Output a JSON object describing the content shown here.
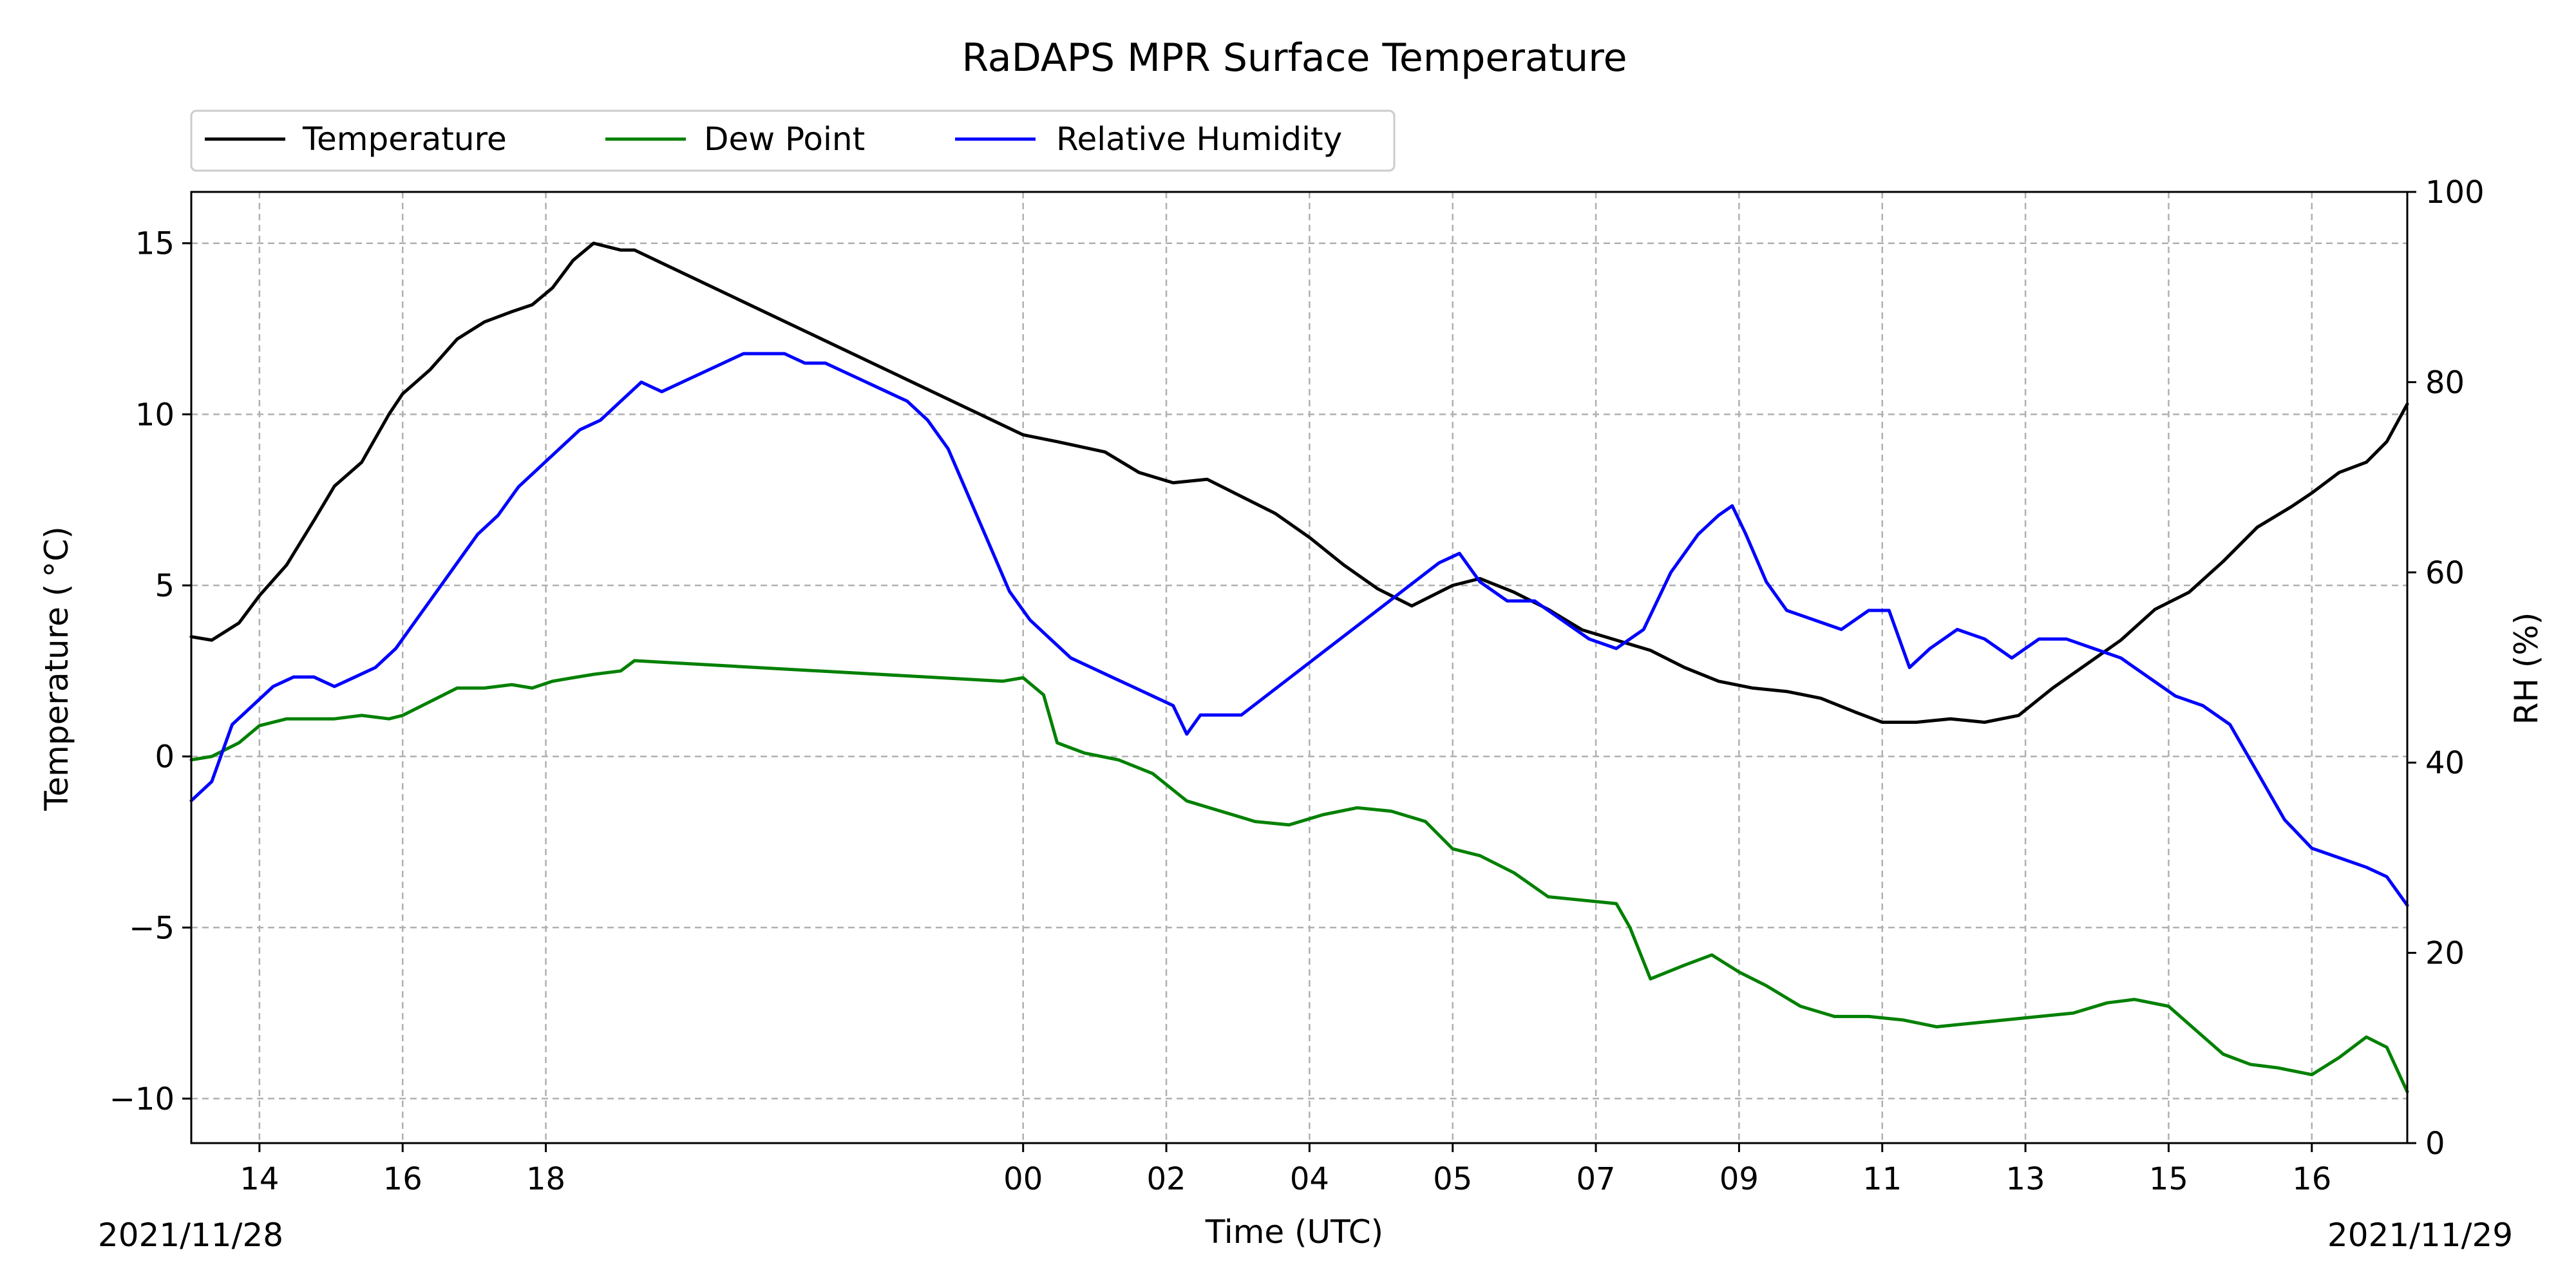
{
  "chart_data": {
    "type": "line",
    "title": "RaDAPS MPR Surface Temperature",
    "xlabel": "Time (UTC)",
    "ylabel": "Temperature ($^\\circ$C)",
    "ylabel_right": "RH (%)",
    "date_left": "2021/11/28",
    "date_right": "2021/11/29",
    "xlim": [
      12.9,
      45.4
    ],
    "ylim": [
      -11.3,
      16.5
    ],
    "ylim_right": [
      0,
      100
    ],
    "grid": true,
    "legend_position": "top-left, above plot",
    "x_ticks": [
      {
        "x": 13.9,
        "label": "14"
      },
      {
        "x": 16.0,
        "label": "16"
      },
      {
        "x": 18.1,
        "label": "18"
      },
      {
        "x": 25.1,
        "label": "00"
      },
      {
        "x": 27.2,
        "label": "02"
      },
      {
        "x": 29.3,
        "label": "04"
      },
      {
        "x": 31.4,
        "label": "05"
      },
      {
        "x": 33.5,
        "label": "07"
      },
      {
        "x": 35.6,
        "label": "09"
      },
      {
        "x": 37.7,
        "label": "11"
      },
      {
        "x": 39.8,
        "label": "13"
      },
      {
        "x": 41.9,
        "label": "15"
      },
      {
        "x": 44.0,
        "label": "16"
      }
    ],
    "y_ticks": [
      {
        "v": -10,
        "label": "−10"
      },
      {
        "v": -5,
        "label": "−5"
      },
      {
        "v": 0,
        "label": "0"
      },
      {
        "v": 5,
        "label": "5"
      },
      {
        "v": 10,
        "label": "10"
      },
      {
        "v": 15,
        "label": "15"
      }
    ],
    "y_ticks_right": [
      {
        "v": 0,
        "label": "0"
      },
      {
        "v": 20,
        "label": "20"
      },
      {
        "v": 40,
        "label": "40"
      },
      {
        "v": 60,
        "label": "60"
      },
      {
        "v": 80,
        "label": "80"
      },
      {
        "v": 100,
        "label": "100"
      }
    ],
    "series": [
      {
        "name": "Temperature",
        "color": "#000000",
        "axis": "left",
        "x": [
          12.9,
          13.2,
          13.6,
          13.9,
          14.3,
          14.7,
          15.0,
          15.4,
          15.8,
          16.0,
          16.4,
          16.8,
          17.2,
          17.6,
          17.9,
          18.2,
          18.5,
          18.8,
          19.2,
          19.4,
          25.1,
          25.6,
          26.3,
          26.8,
          27.3,
          27.8,
          28.3,
          28.8,
          29.3,
          29.8,
          30.3,
          30.8,
          31.4,
          31.8,
          32.3,
          32.8,
          33.3,
          33.8,
          34.3,
          34.8,
          35.3,
          35.8,
          36.3,
          36.8,
          37.3,
          37.7,
          38.2,
          38.7,
          39.2,
          39.7,
          40.2,
          40.7,
          41.2,
          41.7,
          42.2,
          42.7,
          43.2,
          43.7,
          44.0,
          44.4,
          44.8,
          45.1,
          45.4
        ],
        "y": [
          3.5,
          3.4,
          3.9,
          4.7,
          5.6,
          6.9,
          7.9,
          8.6,
          10.0,
          10.6,
          11.3,
          12.2,
          12.7,
          13.0,
          13.2,
          13.7,
          14.5,
          15.0,
          14.8,
          14.8,
          9.4,
          9.2,
          8.9,
          8.3,
          8.0,
          8.1,
          7.6,
          7.1,
          6.4,
          5.6,
          4.9,
          4.4,
          5.0,
          5.2,
          4.8,
          4.3,
          3.7,
          3.4,
          3.1,
          2.6,
          2.2,
          2.0,
          1.9,
          1.7,
          1.3,
          1.0,
          1.0,
          1.1,
          1.0,
          1.2,
          2.0,
          2.7,
          3.4,
          4.3,
          4.8,
          5.7,
          6.7,
          7.3,
          7.7,
          8.3,
          8.6,
          9.2,
          10.3
        ]
      },
      {
        "name": "Dew Point",
        "color": "#008000",
        "axis": "left",
        "x": [
          12.9,
          13.2,
          13.6,
          13.9,
          14.3,
          14.7,
          15.0,
          15.4,
          15.8,
          16.0,
          16.4,
          16.8,
          17.2,
          17.6,
          17.9,
          18.2,
          18.5,
          18.8,
          19.2,
          19.4,
          24.8,
          25.1,
          25.4,
          25.6,
          26.0,
          26.5,
          27.0,
          27.5,
          28.0,
          28.5,
          29.0,
          29.5,
          30.0,
          30.5,
          31.0,
          31.4,
          31.8,
          32.3,
          32.8,
          33.3,
          33.8,
          34.0,
          34.3,
          34.8,
          35.2,
          35.6,
          36.0,
          36.5,
          37.0,
          37.5,
          38.0,
          38.5,
          39.0,
          39.5,
          40.0,
          40.5,
          41.0,
          41.4,
          41.9,
          42.3,
          42.7,
          43.1,
          43.5,
          44.0,
          44.4,
          44.8,
          45.1,
          45.4
        ],
        "y": [
          -0.1,
          0.0,
          0.4,
          0.9,
          1.1,
          1.1,
          1.1,
          1.2,
          1.1,
          1.2,
          1.6,
          2.0,
          2.0,
          2.1,
          2.0,
          2.2,
          2.3,
          2.4,
          2.5,
          2.8,
          2.2,
          2.3,
          1.8,
          0.4,
          0.1,
          -0.1,
          -0.5,
          -1.3,
          -1.6,
          -1.9,
          -2.0,
          -1.7,
          -1.5,
          -1.6,
          -1.9,
          -2.7,
          -2.9,
          -3.4,
          -4.1,
          -4.2,
          -4.3,
          -5.0,
          -6.5,
          -6.1,
          -5.8,
          -6.3,
          -6.7,
          -7.3,
          -7.6,
          -7.6,
          -7.7,
          -7.9,
          -7.8,
          -7.7,
          -7.6,
          -7.5,
          -7.2,
          -7.1,
          -7.3,
          -8.0,
          -8.7,
          -9.0,
          -9.1,
          -9.3,
          -8.8,
          -8.2,
          -8.5,
          -9.8
        ]
      },
      {
        "name": "Relative Humidity",
        "color": "#0000ff",
        "axis": "right",
        "x": [
          12.9,
          13.2,
          13.5,
          13.8,
          14.1,
          14.4,
          14.7,
          15.0,
          15.3,
          15.6,
          15.9,
          16.2,
          16.5,
          16.8,
          17.1,
          17.4,
          17.7,
          18.0,
          18.3,
          18.6,
          18.9,
          19.2,
          19.5,
          19.8,
          20.1,
          20.4,
          20.7,
          21.0,
          21.3,
          21.6,
          21.9,
          22.2,
          22.5,
          22.8,
          23.1,
          23.4,
          23.7,
          24.0,
          24.3,
          24.6,
          24.9,
          25.2,
          25.5,
          25.8,
          26.1,
          26.4,
          26.7,
          27.0,
          27.3,
          27.5,
          27.7,
          28.0,
          28.3,
          31.2,
          31.5,
          31.8,
          32.2,
          32.6,
          33.0,
          33.4,
          33.8,
          34.2,
          34.6,
          35.0,
          35.3,
          35.5,
          35.7,
          36.0,
          36.3,
          36.7,
          37.1,
          37.5,
          37.8,
          38.1,
          38.4,
          38.8,
          39.2,
          39.6,
          40.0,
          40.4,
          40.8,
          41.2,
          41.6,
          42.0,
          42.4,
          42.8,
          43.2,
          43.6,
          44.0,
          44.4,
          44.8,
          45.1,
          45.4
        ],
        "y": [
          36,
          38,
          44,
          46,
          48,
          49,
          49,
          48,
          49,
          50,
          52,
          55,
          58,
          61,
          64,
          66,
          69,
          71,
          73,
          75,
          76,
          78,
          80,
          79,
          80,
          81,
          82,
          83,
          83,
          83,
          82,
          82,
          81,
          80,
          79,
          78,
          76,
          73,
          68,
          63,
          58,
          55,
          53,
          51,
          50,
          49,
          48,
          47,
          46,
          43,
          45,
          45,
          45,
          61,
          62,
          59,
          57,
          57,
          55,
          53,
          52,
          54,
          60,
          64,
          66,
          67,
          64,
          59,
          56,
          55,
          54,
          56,
          56,
          50,
          52,
          54,
          53,
          51,
          53,
          53,
          52,
          51,
          49,
          47,
          46,
          44,
          39,
          34,
          31,
          30,
          29,
          28,
          25
        ]
      }
    ]
  }
}
